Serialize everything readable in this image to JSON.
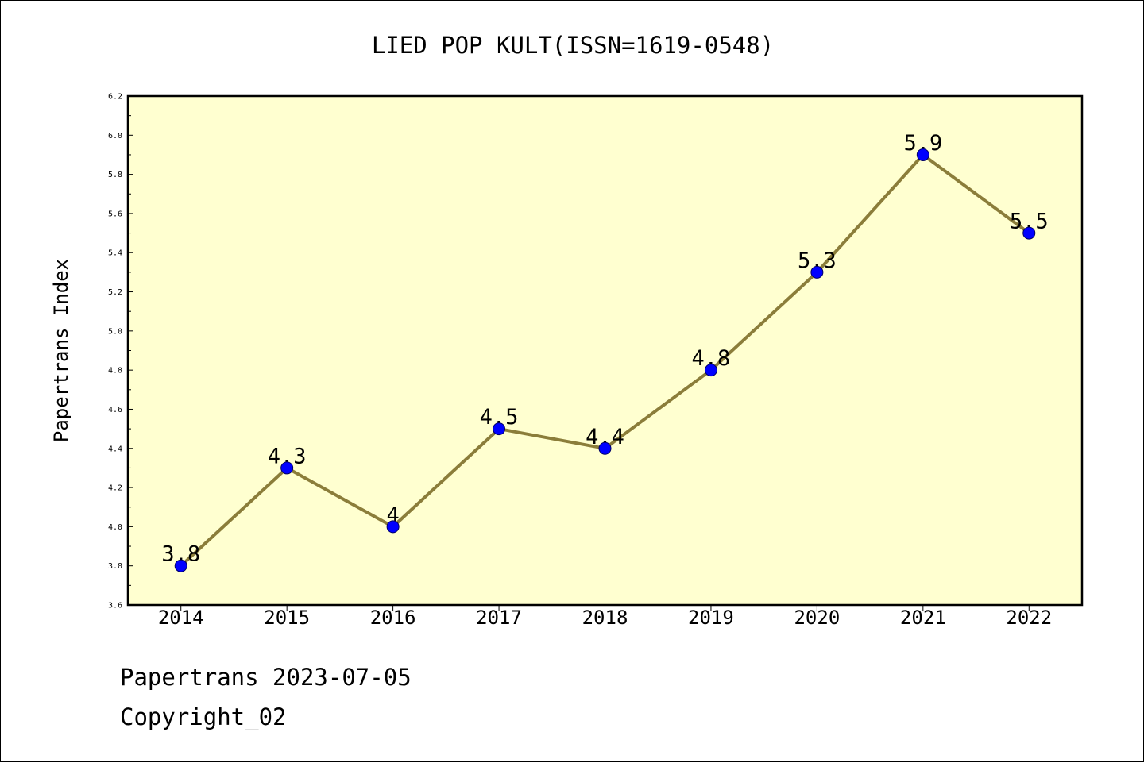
{
  "chart_data": {
    "type": "line",
    "title": "LIED POP KULT(ISSN=1619-0548)",
    "ylabel": "Papertrans Index",
    "xlabel": "",
    "categories": [
      "2014",
      "2015",
      "2016",
      "2017",
      "2018",
      "2019",
      "2020",
      "2021",
      "2022"
    ],
    "values": [
      3.8,
      4.3,
      4.0,
      4.5,
      4.4,
      4.8,
      5.3,
      5.9,
      5.5
    ],
    "data_labels": [
      "3.8",
      "4.3",
      "4",
      "4.5",
      "4.4",
      "4.8",
      "5.3",
      "5.9",
      "5.5"
    ],
    "ylim": [
      3.6,
      6.2
    ],
    "yticks": [
      "3.6",
      "3.8",
      "4.0",
      "4.2",
      "4.4",
      "4.6",
      "4.8",
      "5.0",
      "5.2",
      "5.4",
      "5.6",
      "5.8",
      "6.0",
      "6.2"
    ],
    "grid": false,
    "legend": "none",
    "colors": {
      "plot_background": "#FFFFD0",
      "line": "#8B7D3A",
      "marker": "#0000FF",
      "axis": "#000000",
      "text": "#000000"
    }
  },
  "footer": {
    "line1": "Papertrans 2023-07-05",
    "line2": "Copyright_02"
  }
}
